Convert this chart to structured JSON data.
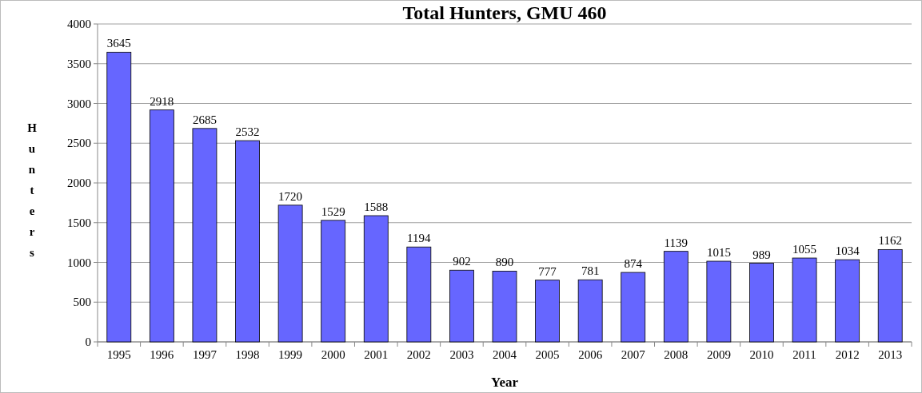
{
  "chart_data": {
    "type": "bar",
    "title": "Total Hunters, GMU 460",
    "xlabel": "Year",
    "ylabel": "Hunters",
    "categories": [
      "1995",
      "1996",
      "1997",
      "1998",
      "1999",
      "2000",
      "2001",
      "2002",
      "2003",
      "2004",
      "2005",
      "2006",
      "2007",
      "2008",
      "2009",
      "2010",
      "2011",
      "2012",
      "2013"
    ],
    "values": [
      3645,
      2918,
      2685,
      2532,
      1720,
      1529,
      1588,
      1194,
      902,
      890,
      777,
      781,
      874,
      1139,
      1015,
      989,
      1055,
      1034,
      1162
    ],
    "color": "#6666ff",
    "ylim": [
      0,
      4000
    ],
    "yticks": [
      0,
      500,
      1000,
      1500,
      2000,
      2500,
      3000,
      3500,
      4000
    ],
    "grid": "y",
    "data_labels": true
  }
}
